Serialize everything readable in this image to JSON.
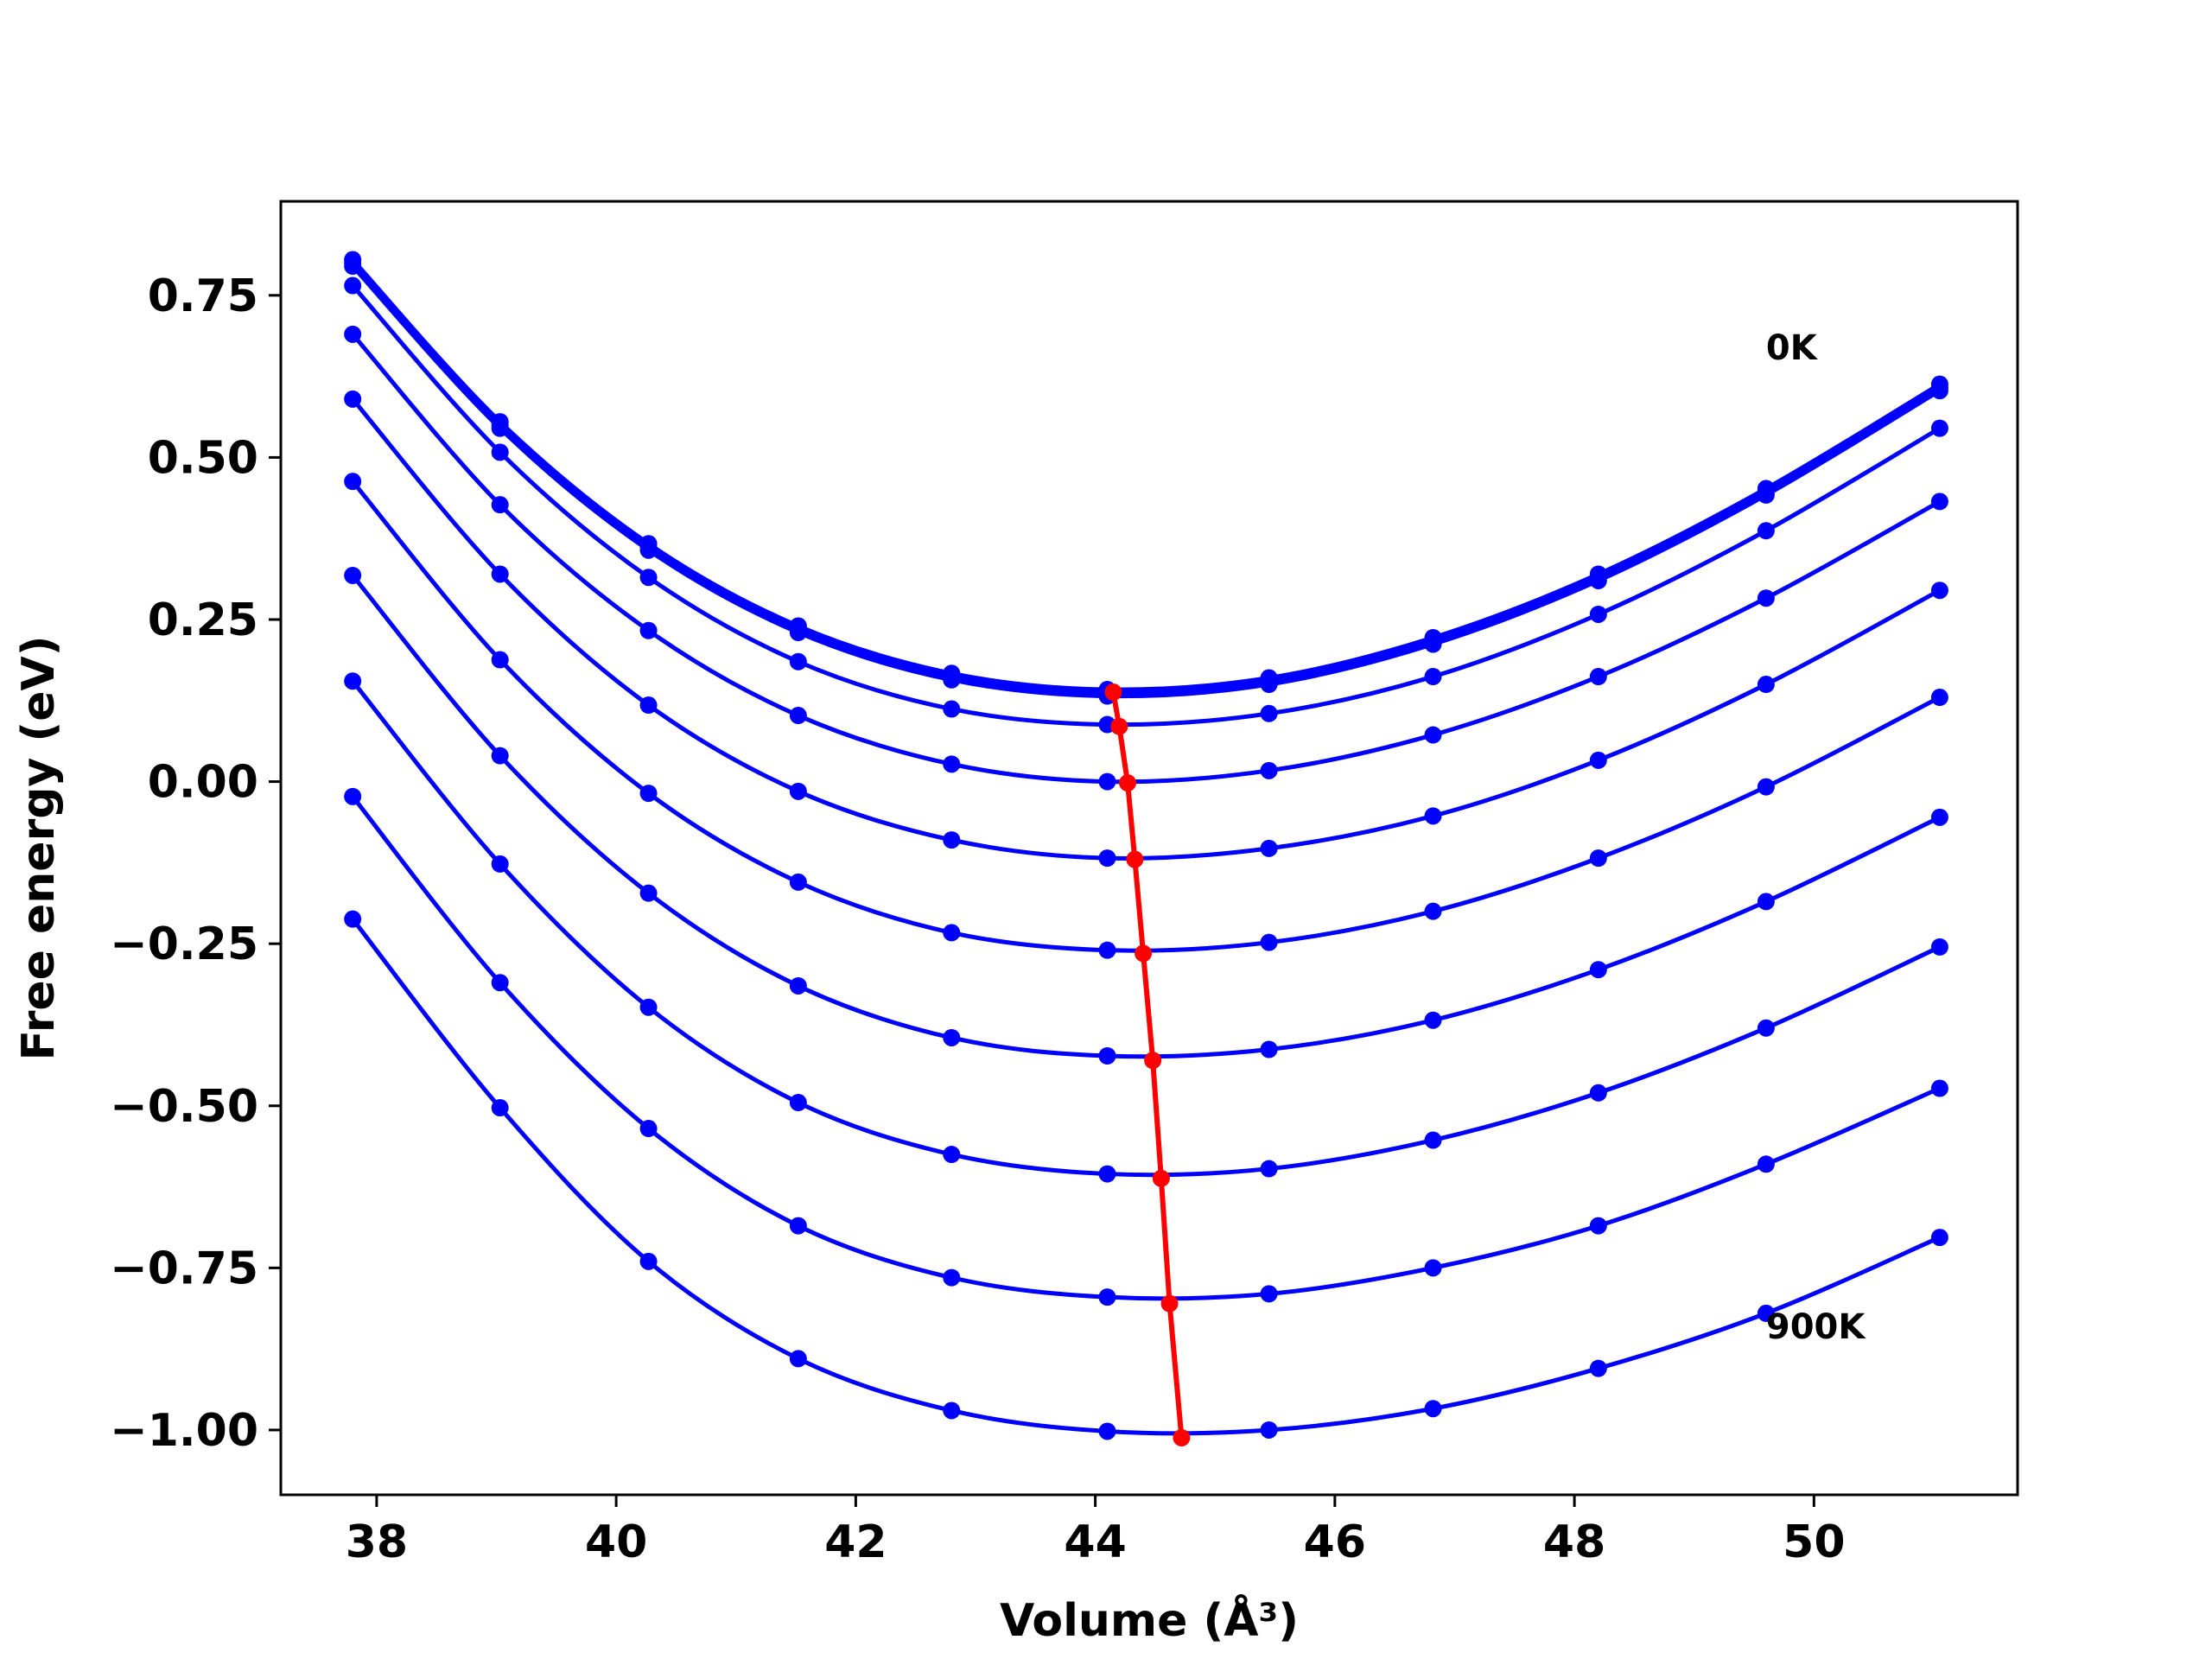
{
  "chart_data": {
    "type": "line",
    "title": "",
    "xlabel": "Volume (Å³)",
    "ylabel": "Free energy (eV)",
    "xlim": [
      37.2,
      51.7
    ],
    "ylim": [
      -1.1,
      0.895
    ],
    "xticks": [
      38,
      40,
      42,
      44,
      46,
      48,
      50
    ],
    "yticks": [
      0.75,
      0.5,
      0.25,
      0.0,
      -0.25,
      -0.5,
      -0.75,
      -1.0
    ],
    "xtick_labels": [
      "38",
      "40",
      "42",
      "44",
      "46",
      "48",
      "50"
    ],
    "ytick_labels": [
      "0.75",
      "0.50",
      "0.25",
      "0.00",
      "−0.25",
      "−0.50",
      "−0.75",
      "−1.00"
    ],
    "grid": false,
    "legend": "none",
    "x": [
      37.8,
      39.03,
      40.27,
      41.52,
      42.8,
      44.1,
      45.45,
      46.82,
      48.2,
      49.6,
      51.05
    ],
    "series": [
      {
        "color": "#0000ff",
        "values": [
          0.805,
          0.555,
          0.367,
          0.24,
          0.167,
          0.142,
          0.16,
          0.222,
          0.32,
          0.452,
          0.613
        ]
      },
      {
        "color": "#0000ff",
        "values": [
          0.8,
          0.55,
          0.362,
          0.235,
          0.162,
          0.137,
          0.155,
          0.217,
          0.315,
          0.447,
          0.608
        ]
      },
      {
        "color": "#0000ff",
        "values": [
          0.795,
          0.545,
          0.357,
          0.23,
          0.157,
          0.132,
          0.15,
          0.212,
          0.31,
          0.442,
          0.603
        ]
      },
      {
        "color": "#0000ff",
        "values": [
          0.765,
          0.508,
          0.315,
          0.185,
          0.112,
          0.088,
          0.105,
          0.162,
          0.258,
          0.387,
          0.545
        ]
      },
      {
        "color": "#0000ff",
        "values": [
          0.69,
          0.427,
          0.233,
          0.102,
          0.027,
          0.0,
          0.017,
          0.072,
          0.162,
          0.283,
          0.432
        ]
      },
      {
        "color": "#0000ff",
        "values": [
          0.59,
          0.32,
          0.118,
          -0.015,
          -0.09,
          -0.118,
          -0.103,
          -0.053,
          0.033,
          0.15,
          0.295
        ]
      },
      {
        "color": "#0000ff",
        "values": [
          0.463,
          0.188,
          -0.018,
          -0.155,
          -0.233,
          -0.26,
          -0.248,
          -0.2,
          -0.118,
          -0.008,
          0.13
        ]
      },
      {
        "color": "#0000ff",
        "values": [
          0.318,
          0.04,
          -0.172,
          -0.315,
          -0.395,
          -0.423,
          -0.413,
          -0.368,
          -0.29,
          -0.185,
          -0.055
        ]
      },
      {
        "color": "#0000ff",
        "values": [
          0.155,
          -0.127,
          -0.348,
          -0.495,
          -0.575,
          -0.605,
          -0.597,
          -0.553,
          -0.48,
          -0.38,
          -0.255
        ]
      },
      {
        "color": "#0000ff",
        "values": [
          -0.023,
          -0.31,
          -0.535,
          -0.685,
          -0.765,
          -0.795,
          -0.79,
          -0.75,
          -0.685,
          -0.59,
          -0.473
        ]
      },
      {
        "color": "#0000ff",
        "values": [
          -0.212,
          -0.503,
          -0.74,
          -0.89,
          -0.97,
          -1.002,
          -1.0,
          -0.967,
          -0.905,
          -0.82,
          -0.703
        ]
      }
    ],
    "minimum_path": {
      "color": "#ff0000",
      "x": [
        44.15,
        44.2,
        44.27,
        44.33,
        44.4,
        44.48,
        44.55,
        44.62,
        44.72
      ],
      "values": [
        0.138,
        0.085,
        -0.002,
        -0.12,
        -0.265,
        -0.43,
        -0.612,
        -0.805,
        -1.012
      ]
    },
    "annotations": [
      {
        "text": "0K",
        "x": 49.6,
        "y": 0.67
      },
      {
        "text": "900K",
        "x": 49.6,
        "y": -0.84
      }
    ]
  }
}
